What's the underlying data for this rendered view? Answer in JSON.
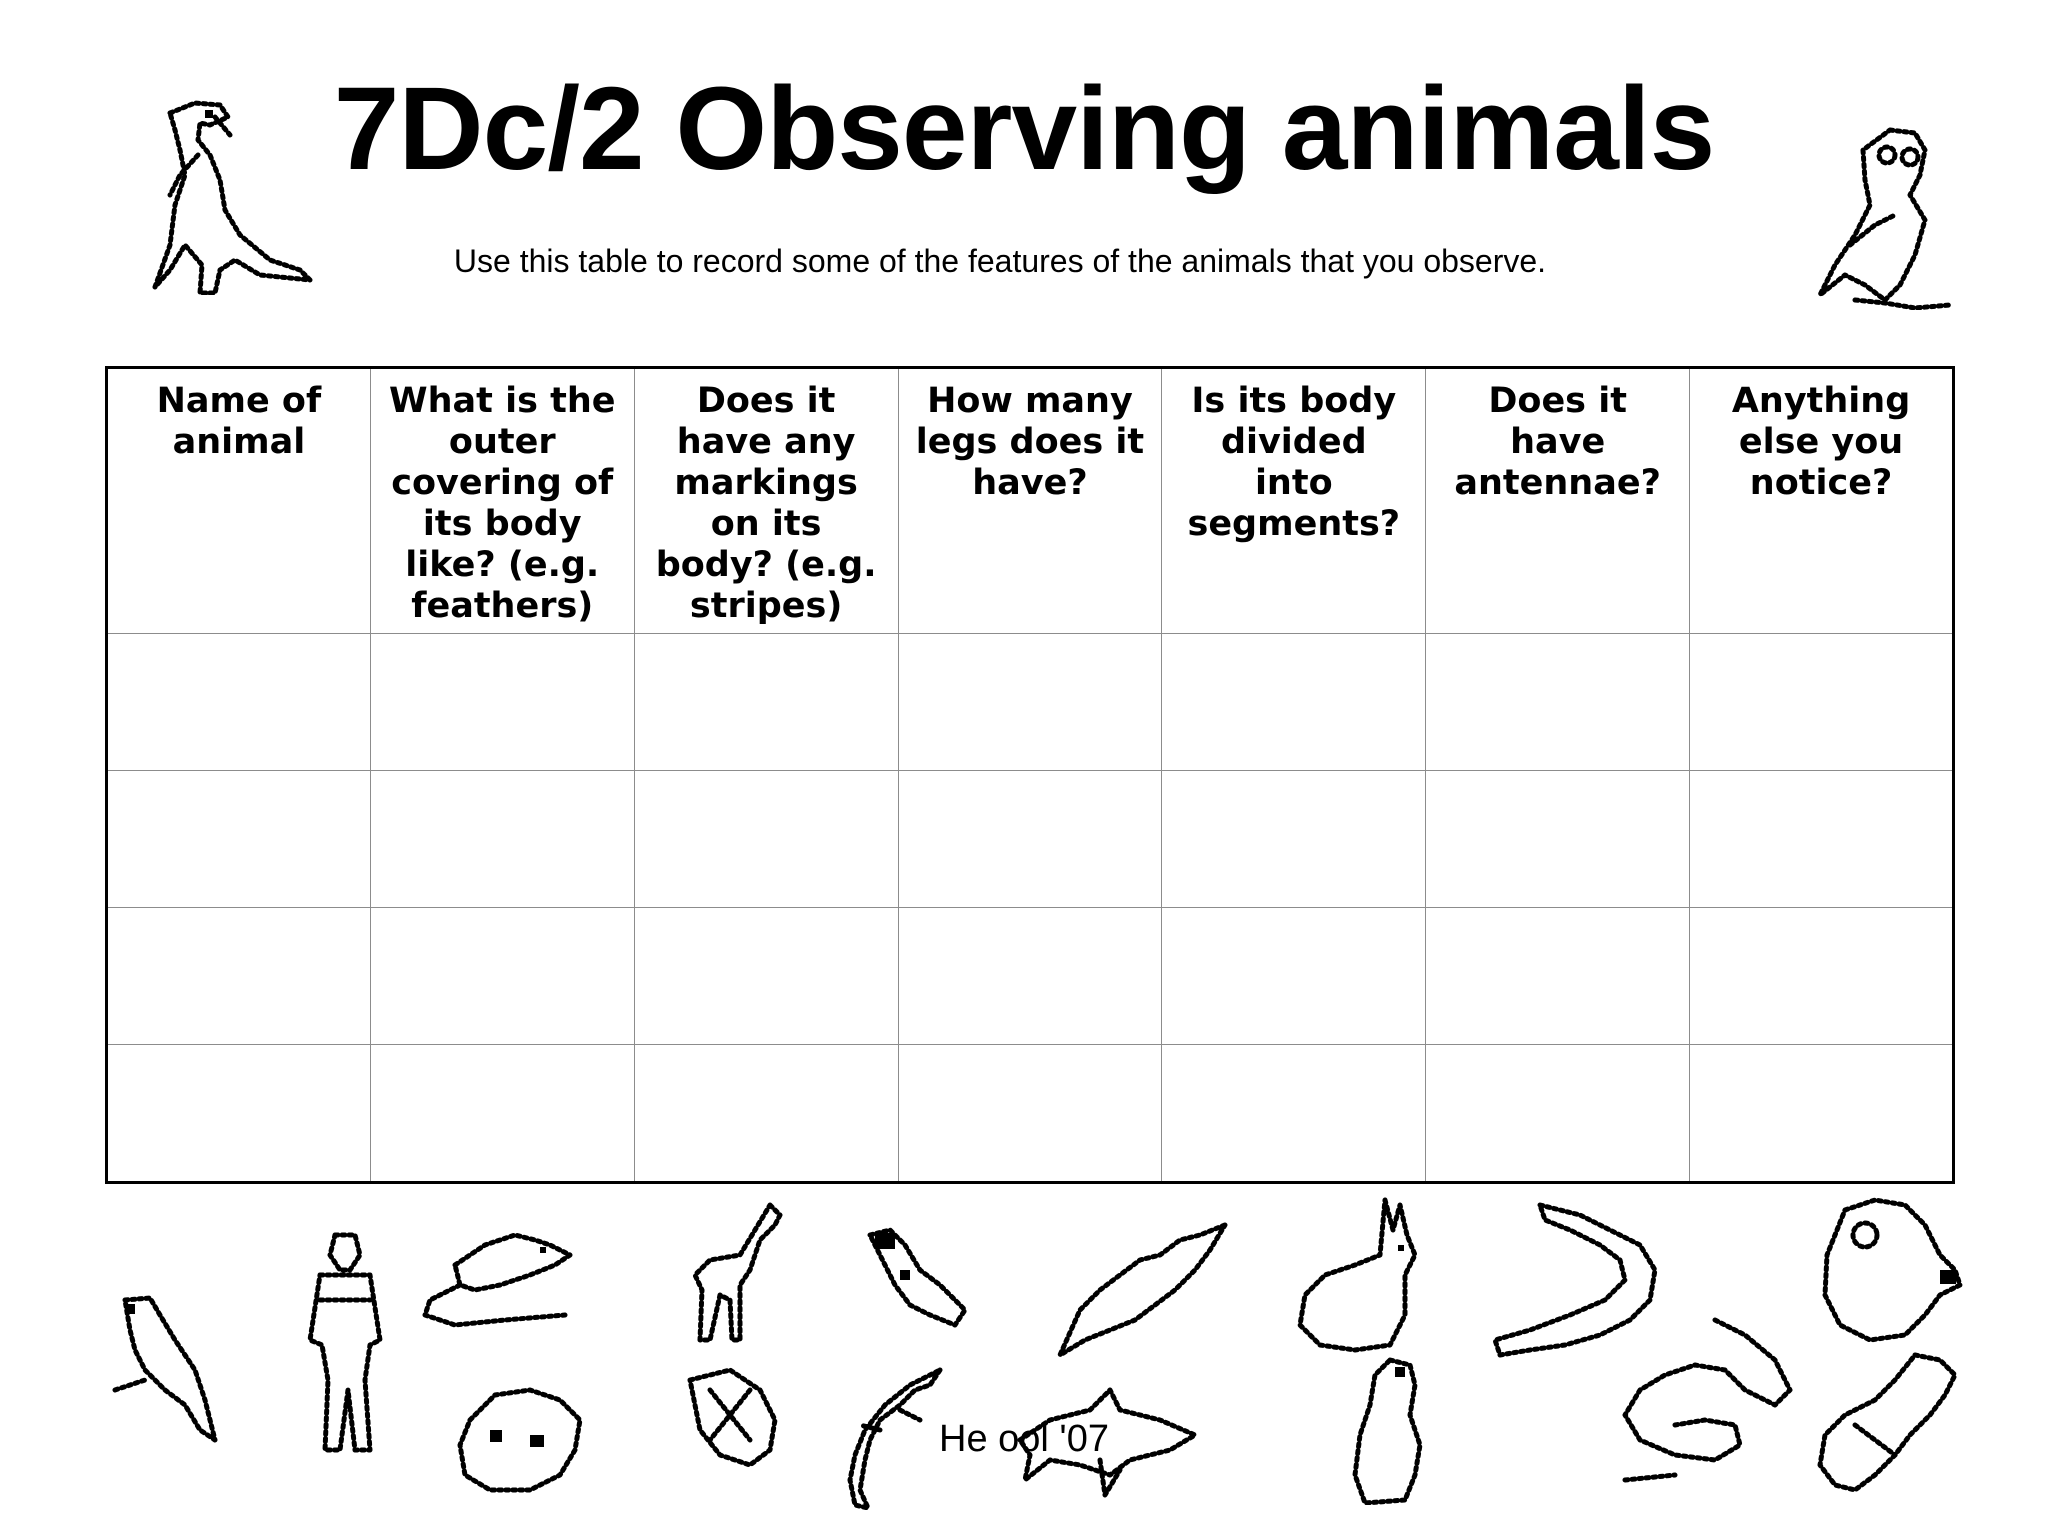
{
  "worksheet": {
    "title": "7Dc/2 Observing animals",
    "subtitle": "Use this table to record some of the features of the animals that you observe.",
    "columns": [
      "Name of animal",
      "What is the outer covering of its body like? (e.g. feathers)",
      "Does it have any markings on its body? (e.g. stripes)",
      "How many legs does it have?",
      "Is its body divided into segments?",
      "Does it have antennae?",
      "Anything else you notice?"
    ],
    "rows": [
      [
        "",
        "",
        "",
        "",
        "",
        "",
        ""
      ],
      [
        "",
        "",
        "",
        "",
        "",
        "",
        ""
      ],
      [
        "",
        "",
        "",
        "",
        "",
        "",
        ""
      ],
      [
        "",
        "",
        "",
        "",
        "",
        "",
        ""
      ]
    ],
    "footer": "He              ool '07"
  },
  "clipart": {
    "header_left": "dinosaur-icon",
    "header_right": "owl-icon",
    "footer": [
      "parrot-icon",
      "person-icon",
      "rat-icon",
      "toad-icon",
      "giraffe-icon",
      "insect-icon",
      "bird-icon",
      "lizard-icon",
      "bat-icon",
      "shark-icon",
      "hare-icon",
      "penguin-icon",
      "crocodile-icon",
      "snake-icon",
      "monkey-icon",
      "tortoise-icon"
    ]
  }
}
